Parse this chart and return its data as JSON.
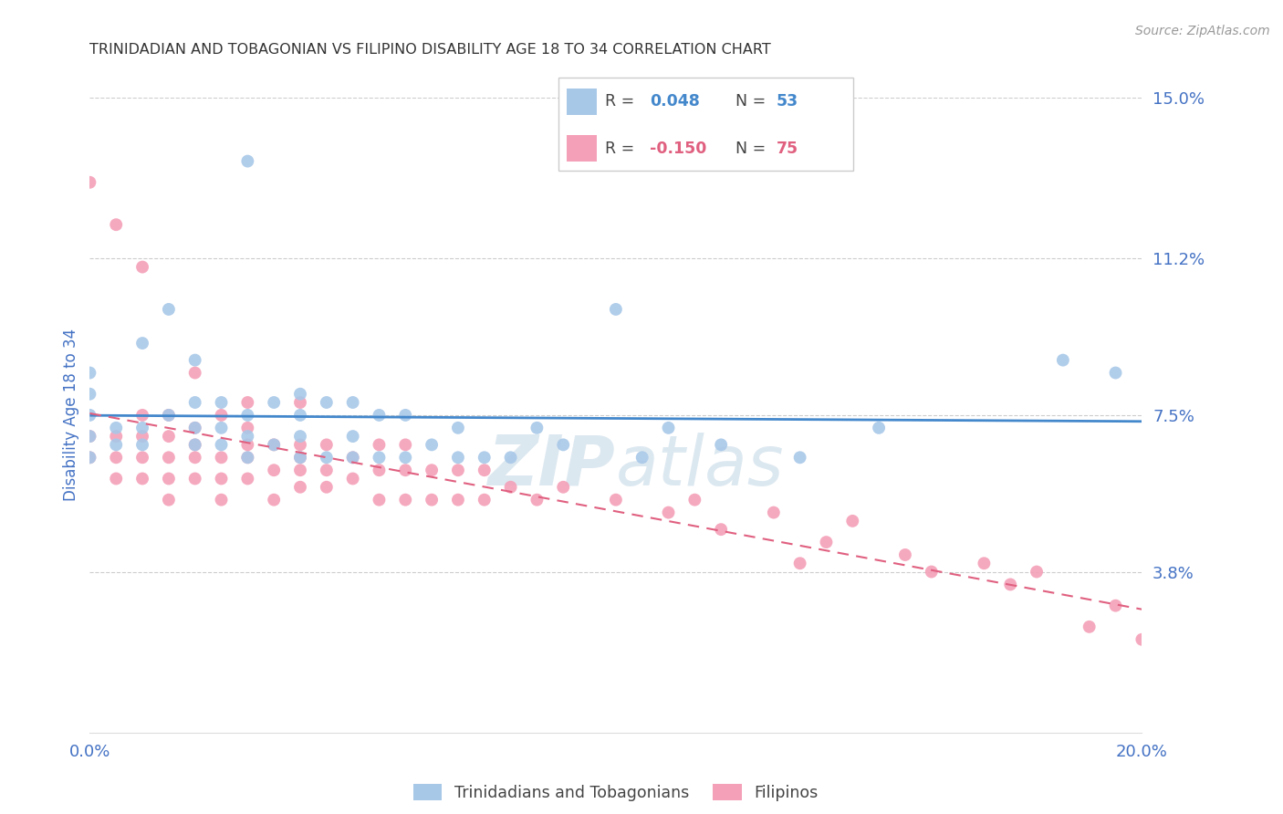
{
  "title": "TRINIDADIAN AND TOBAGONIAN VS FILIPINO DISABILITY AGE 18 TO 34 CORRELATION CHART",
  "source_text": "Source: ZipAtlas.com",
  "ylabel": "Disability Age 18 to 34",
  "xlim": [
    0.0,
    0.2
  ],
  "ylim": [
    0.0,
    0.15
  ],
  "yticks": [
    0.038,
    0.075,
    0.112,
    0.15
  ],
  "ytick_labels": [
    "3.8%",
    "7.5%",
    "11.2%",
    "15.0%"
  ],
  "xticks": [
    0.0,
    0.05,
    0.1,
    0.15,
    0.2
  ],
  "xtick_labels": [
    "0.0%",
    "",
    "",
    "",
    "20.0%"
  ],
  "blue_color": "#a8c8e8",
  "pink_color": "#f4a0b8",
  "blue_line_color": "#4488cc",
  "pink_line_color": "#e06080",
  "label1": "Trinidadians and Tobagonians",
  "label2": "Filipinos",
  "background_color": "#ffffff",
  "grid_color": "#cccccc",
  "title_color": "#333333",
  "axis_label_color": "#4472c4",
  "tick_label_color": "#4472c4",
  "watermark_color": "#e8eef4",
  "blue_R": "0.048",
  "blue_N": "53",
  "pink_R": "-0.150",
  "pink_N": "75",
  "blue_scatter_x": [
    0.0,
    0.0,
    0.0,
    0.0,
    0.0,
    0.005,
    0.005,
    0.01,
    0.01,
    0.01,
    0.015,
    0.015,
    0.02,
    0.02,
    0.02,
    0.02,
    0.025,
    0.025,
    0.025,
    0.03,
    0.03,
    0.03,
    0.03,
    0.035,
    0.035,
    0.04,
    0.04,
    0.04,
    0.04,
    0.045,
    0.045,
    0.05,
    0.05,
    0.05,
    0.055,
    0.055,
    0.06,
    0.06,
    0.065,
    0.07,
    0.07,
    0.075,
    0.08,
    0.085,
    0.09,
    0.1,
    0.105,
    0.11,
    0.12,
    0.135,
    0.15,
    0.185,
    0.195
  ],
  "blue_scatter_y": [
    0.065,
    0.07,
    0.075,
    0.08,
    0.085,
    0.068,
    0.072,
    0.068,
    0.072,
    0.092,
    0.075,
    0.1,
    0.068,
    0.072,
    0.078,
    0.088,
    0.068,
    0.072,
    0.078,
    0.065,
    0.07,
    0.075,
    0.135,
    0.068,
    0.078,
    0.065,
    0.07,
    0.075,
    0.08,
    0.065,
    0.078,
    0.065,
    0.07,
    0.078,
    0.065,
    0.075,
    0.065,
    0.075,
    0.068,
    0.065,
    0.072,
    0.065,
    0.065,
    0.072,
    0.068,
    0.1,
    0.065,
    0.072,
    0.068,
    0.065,
    0.072,
    0.088,
    0.085
  ],
  "pink_scatter_x": [
    0.0,
    0.0,
    0.0,
    0.005,
    0.005,
    0.005,
    0.005,
    0.01,
    0.01,
    0.01,
    0.01,
    0.01,
    0.015,
    0.015,
    0.015,
    0.015,
    0.015,
    0.02,
    0.02,
    0.02,
    0.02,
    0.02,
    0.025,
    0.025,
    0.025,
    0.025,
    0.03,
    0.03,
    0.03,
    0.03,
    0.03,
    0.035,
    0.035,
    0.035,
    0.04,
    0.04,
    0.04,
    0.04,
    0.04,
    0.045,
    0.045,
    0.045,
    0.05,
    0.05,
    0.055,
    0.055,
    0.055,
    0.06,
    0.06,
    0.06,
    0.065,
    0.065,
    0.07,
    0.07,
    0.075,
    0.075,
    0.08,
    0.085,
    0.09,
    0.1,
    0.11,
    0.115,
    0.12,
    0.13,
    0.135,
    0.14,
    0.145,
    0.155,
    0.16,
    0.17,
    0.175,
    0.18,
    0.19,
    0.195,
    0.2
  ],
  "pink_scatter_y": [
    0.065,
    0.07,
    0.13,
    0.06,
    0.065,
    0.07,
    0.12,
    0.06,
    0.065,
    0.07,
    0.075,
    0.11,
    0.055,
    0.06,
    0.065,
    0.07,
    0.075,
    0.06,
    0.065,
    0.068,
    0.072,
    0.085,
    0.055,
    0.06,
    0.065,
    0.075,
    0.06,
    0.065,
    0.068,
    0.072,
    0.078,
    0.055,
    0.062,
    0.068,
    0.058,
    0.062,
    0.065,
    0.068,
    0.078,
    0.058,
    0.062,
    0.068,
    0.06,
    0.065,
    0.055,
    0.062,
    0.068,
    0.055,
    0.062,
    0.068,
    0.055,
    0.062,
    0.055,
    0.062,
    0.055,
    0.062,
    0.058,
    0.055,
    0.058,
    0.055,
    0.052,
    0.055,
    0.048,
    0.052,
    0.04,
    0.045,
    0.05,
    0.042,
    0.038,
    0.04,
    0.035,
    0.038,
    0.025,
    0.03,
    0.022
  ]
}
